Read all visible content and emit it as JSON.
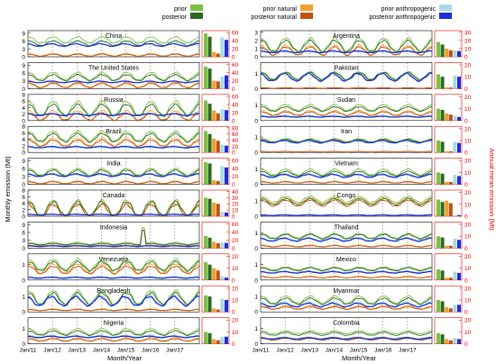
{
  "colors": {
    "prior": "#7bc142",
    "posterior": "#2d6a1f",
    "prior_natural": "#f0a030",
    "posterior_natural": "#c05010",
    "prior_anthropogenic": "#a8d8ea",
    "posterior_anthropogenic": "#1a2fd6",
    "right_axis": "#e00000"
  },
  "legend": {
    "prior": "prior",
    "posterior": "posterior",
    "prior_natural": "prior natural",
    "posterior_natural": "posterior natural",
    "prior_anthropogenic": "prior anthropogenic",
    "posterior_anthropogenic": "posterior anthropogenic"
  },
  "axes": {
    "left_ylabel": "Monthly emission (Mt)",
    "right_ylabel": "Annual mean emission (Mt)",
    "xlabel": "Month/Year",
    "xticks": [
      "Jan/11",
      "Jan/12",
      "Jan/13",
      "Jan/14",
      "Jan/15",
      "Jan/16",
      "Jan/17"
    ]
  },
  "chart_data": [
    {
      "type": "line+bar",
      "title": "China",
      "yticks": [
        0,
        3,
        6,
        9
      ],
      "ylim": [
        0,
        10
      ],
      "right_ticks": [
        0,
        20,
        40,
        60
      ],
      "right_lim": [
        0,
        65
      ],
      "monthly": {
        "prior": {
          "base": 6.5,
          "amp": 1.2
        },
        "posterior": {
          "base": 5.2,
          "amp": 0.9
        },
        "prior_natural": {
          "base": 0.8,
          "amp": 0.5
        },
        "posterior_natural": {
          "base": 0.6,
          "amp": 0.4
        },
        "prior_anthropogenic": {
          "base": 5.5,
          "amp": 0.3
        },
        "posterior_anthropogenic": {
          "base": 4.5,
          "amp": 0.5
        }
      },
      "annual_bars": [
        58,
        50,
        12,
        8,
        48,
        42
      ]
    },
    {
      "type": "line+bar",
      "title": "The United States",
      "yticks": [
        0,
        3,
        6,
        9
      ],
      "ylim": [
        0,
        10
      ],
      "right_ticks": [
        0,
        20,
        40,
        60
      ],
      "right_lim": [
        0,
        65
      ],
      "monthly": {
        "prior": {
          "base": 4.8,
          "amp": 1.5
        },
        "posterior": {
          "base": 4.2,
          "amp": 1.2
        },
        "prior_natural": {
          "base": 1.5,
          "amp": 1.0
        },
        "posterior_natural": {
          "base": 1.2,
          "amp": 0.9
        },
        "prior_anthropogenic": {
          "base": 2.5,
          "amp": 0.2
        },
        "posterior_anthropogenic": {
          "base": 2.6,
          "amp": 0.3
        }
      },
      "annual_bars": [
        55,
        50,
        20,
        18,
        30,
        33
      ]
    },
    {
      "type": "line+bar",
      "title": "Russia",
      "yticks": [
        0,
        2,
        4,
        6,
        8
      ],
      "ylim": [
        0,
        8
      ],
      "right_ticks": [
        0,
        20,
        40,
        60
      ],
      "right_lim": [
        0,
        65
      ],
      "monthly": {
        "prior": {
          "base": 3.8,
          "amp": 2.2
        },
        "posterior": {
          "base": 3.2,
          "amp": 1.8
        },
        "prior_natural": {
          "base": 1.6,
          "amp": 1.5
        },
        "posterior_natural": {
          "base": 1.2,
          "amp": 1.1
        },
        "prior_anthropogenic": {
          "base": 2.0,
          "amp": 0.2
        },
        "posterior_anthropogenic": {
          "base": 1.8,
          "amp": 0.3
        }
      },
      "annual_bars": [
        50,
        42,
        25,
        18,
        28,
        26
      ]
    },
    {
      "type": "line+bar",
      "title": "Brazil",
      "yticks": [
        0,
        2,
        4,
        6,
        8
      ],
      "ylim": [
        0,
        8
      ],
      "right_ticks": [
        0,
        20,
        40,
        60,
        80
      ],
      "right_lim": [
        0,
        85
      ],
      "monthly": {
        "prior": {
          "base": 5.0,
          "amp": 1.5
        },
        "posterior": {
          "base": 4.5,
          "amp": 1.3
        },
        "prior_natural": {
          "base": 3.2,
          "amp": 1.2
        },
        "posterior_natural": {
          "base": 2.8,
          "amp": 1.0
        },
        "prior_anthropogenic": {
          "base": 1.8,
          "amp": 0.2
        },
        "posterior_anthropogenic": {
          "base": 1.6,
          "amp": 0.2
        }
      },
      "annual_bars": [
        70,
        60,
        45,
        38,
        25,
        22
      ]
    },
    {
      "type": "line+bar",
      "title": "India",
      "yticks": [
        0,
        3,
        6,
        9
      ],
      "ylim": [
        0,
        10
      ],
      "right_ticks": [
        0,
        20,
        40,
        60
      ],
      "right_lim": [
        0,
        65
      ],
      "monthly": {
        "prior": {
          "base": 4.8,
          "amp": 1.3
        },
        "posterior": {
          "base": 4.3,
          "amp": 1.2
        },
        "prior_natural": {
          "base": 0.8,
          "amp": 0.5
        },
        "posterior_natural": {
          "base": 0.6,
          "amp": 0.4
        },
        "prior_anthropogenic": {
          "base": 3.8,
          "amp": 0.4
        },
        "posterior_anthropogenic": {
          "base": 3.5,
          "amp": 0.5
        }
      },
      "annual_bars": [
        55,
        52,
        10,
        8,
        45,
        42
      ]
    },
    {
      "type": "line+bar",
      "title": "Canada",
      "yticks": [
        0,
        2,
        4,
        6,
        8
      ],
      "ylim": [
        0,
        8
      ],
      "right_ticks": [
        0,
        10,
        20,
        30,
        40
      ],
      "right_lim": [
        0,
        42
      ],
      "monthly": {
        "prior": {
          "base": 2.5,
          "amp": 2.5
        },
        "posterior": {
          "base": 2.3,
          "amp": 2.2
        },
        "prior_natural": {
          "base": 1.8,
          "amp": 2.2
        },
        "posterior_natural": {
          "base": 1.6,
          "amp": 2.0
        },
        "prior_anthropogenic": {
          "base": 0.6,
          "amp": 0.1
        },
        "posterior_anthropogenic": {
          "base": 0.5,
          "amp": 0.1
        }
      },
      "annual_bars": [
        30,
        28,
        22,
        20,
        7,
        6
      ]
    },
    {
      "type": "line+bar",
      "title": "Indonesia",
      "yticks": [
        0,
        3,
        6,
        9
      ],
      "ylim": [
        0,
        10
      ],
      "right_ticks": [
        0,
        20,
        40,
        60
      ],
      "right_lim": [
        0,
        65
      ],
      "monthly": {
        "prior": {
          "base": 1.8,
          "amp": 0.4
        },
        "posterior": {
          "base": 1.5,
          "amp": 0.3
        },
        "prior_natural": {
          "base": 0.9,
          "amp": 0.3
        },
        "posterior_natural": {
          "base": 0.7,
          "amp": 0.2
        },
        "prior_anthropogenic": {
          "base": 0.9,
          "amp": 0.1
        },
        "posterior_anthropogenic": {
          "base": 0.8,
          "amp": 0.1
        }
      },
      "annual_bars": [
        30,
        26,
        16,
        12,
        14,
        13
      ]
    },
    {
      "type": "line+bar",
      "title": "Venezuela",
      "yticks": [
        0,
        1
      ],
      "ylim": [
        0,
        1.7
      ],
      "right_ticks": [
        0,
        10,
        20
      ],
      "right_lim": [
        0,
        22
      ],
      "monthly": {
        "prior": {
          "base": 1.0,
          "amp": 0.35
        },
        "posterior": {
          "base": 0.9,
          "amp": 0.3
        },
        "prior_natural": {
          "base": 0.75,
          "amp": 0.3
        },
        "posterior_natural": {
          "base": 0.65,
          "amp": 0.25
        },
        "prior_anthropogenic": {
          "base": 0.2,
          "amp": 0.03
        },
        "posterior_anthropogenic": {
          "base": 0.15,
          "amp": 0.03
        }
      },
      "annual_bars": [
        15,
        13,
        10,
        8,
        3,
        2
      ]
    },
    {
      "type": "line+bar",
      "title": "Bangladesh",
      "yticks": [
        0,
        1
      ],
      "ylim": [
        0,
        1.7
      ],
      "right_ticks": [
        0,
        10,
        20
      ],
      "right_lim": [
        0,
        22
      ],
      "monthly": {
        "prior": {
          "base": 0.95,
          "amp": 0.45
        },
        "posterior": {
          "base": 0.85,
          "amp": 0.4
        },
        "prior_natural": {
          "base": 0.15,
          "amp": 0.05
        },
        "posterior_natural": {
          "base": 0.12,
          "amp": 0.04
        },
        "prior_anthropogenic": {
          "base": 0.75,
          "amp": 0.35
        },
        "posterior_anthropogenic": {
          "base": 0.7,
          "amp": 0.3
        }
      },
      "annual_bars": [
        14,
        13,
        3,
        2,
        11,
        10
      ]
    },
    {
      "type": "line+bar",
      "title": "Nigeria",
      "yticks": [
        0,
        1
      ],
      "ylim": [
        0,
        1.7
      ],
      "right_ticks": [
        0,
        10,
        20
      ],
      "right_lim": [
        0,
        22
      ],
      "monthly": {
        "prior": {
          "base": 0.8,
          "amp": 0.2
        },
        "posterior": {
          "base": 0.7,
          "amp": 0.15
        },
        "prior_natural": {
          "base": 0.3,
          "amp": 0.1
        },
        "posterior_natural": {
          "base": 0.25,
          "amp": 0.08
        },
        "prior_anthropogenic": {
          "base": 0.5,
          "amp": 0.05
        },
        "posterior_anthropogenic": {
          "base": 0.45,
          "amp": 0.05
        }
      },
      "annual_bars": [
        10,
        9,
        4,
        3,
        6,
        6
      ]
    },
    {
      "type": "line+bar",
      "title": "Argentina",
      "yticks": [
        0,
        1,
        2,
        3
      ],
      "ylim": [
        0,
        3.2
      ],
      "right_ticks": [
        0,
        10,
        20,
        30
      ],
      "right_lim": [
        0,
        32
      ],
      "monthly": {
        "prior": {
          "base": 1.5,
          "amp": 0.8
        },
        "posterior": {
          "base": 1.3,
          "amp": 0.7
        },
        "prior_natural": {
          "base": 0.8,
          "amp": 0.6
        },
        "posterior_natural": {
          "base": 0.7,
          "amp": 0.5
        },
        "prior_anthropogenic": {
          "base": 0.7,
          "amp": 0.1
        },
        "posterior_anthropogenic": {
          "base": 0.6,
          "amp": 0.1
        }
      },
      "annual_bars": [
        18,
        15,
        10,
        8,
        8,
        7
      ]
    },
    {
      "type": "line+bar",
      "title": "Pakistan",
      "yticks": [
        0,
        1
      ],
      "ylim": [
        0,
        1.7
      ],
      "right_ticks": [
        0,
        10,
        20
      ],
      "right_lim": [
        0,
        22
      ],
      "monthly": {
        "prior": {
          "base": 0.85,
          "amp": 0.25
        },
        "posterior": {
          "base": 0.8,
          "amp": 0.25
        },
        "prior_natural": {
          "base": 0.05,
          "amp": 0.02
        },
        "posterior_natural": {
          "base": 0.04,
          "amp": 0.02
        },
        "prior_anthropogenic": {
          "base": 0.8,
          "amp": 0.25
        },
        "posterior_anthropogenic": {
          "base": 0.75,
          "amp": 0.25
        }
      },
      "annual_bars": [
        12,
        10,
        1,
        1,
        11,
        10
      ]
    },
    {
      "type": "line+bar",
      "title": "Sudan",
      "yticks": [
        0,
        1
      ],
      "ylim": [
        0,
        1.7
      ],
      "right_ticks": [
        0,
        10,
        20
      ],
      "right_lim": [
        0,
        22
      ],
      "monthly": {
        "prior": {
          "base": 0.85,
          "amp": 0.2
        },
        "posterior": {
          "base": 0.75,
          "amp": 0.15
        },
        "prior_natural": {
          "base": 0.5,
          "amp": 0.15
        },
        "posterior_natural": {
          "base": 0.45,
          "amp": 0.12
        },
        "prior_anthropogenic": {
          "base": 0.3,
          "amp": 0.03
        },
        "posterior_anthropogenic": {
          "base": 0.25,
          "amp": 0.03
        }
      },
      "annual_bars": [
        10,
        9,
        6,
        5,
        4,
        3
      ]
    },
    {
      "type": "line+bar",
      "title": "Iran",
      "yticks": [
        0,
        1
      ],
      "ylim": [
        0,
        1.7
      ],
      "right_ticks": [
        0,
        10,
        20
      ],
      "right_lim": [
        0,
        22
      ],
      "monthly": {
        "prior": {
          "base": 0.8,
          "amp": 0.1
        },
        "posterior": {
          "base": 0.75,
          "amp": 0.1
        },
        "prior_natural": {
          "base": 0.05,
          "amp": 0.02
        },
        "posterior_natural": {
          "base": 0.05,
          "amp": 0.02
        },
        "prior_anthropogenic": {
          "base": 0.75,
          "amp": 0.08
        },
        "posterior_anthropogenic": {
          "base": 0.7,
          "amp": 0.08
        }
      },
      "annual_bars": [
        10,
        9,
        1,
        1,
        9,
        8
      ]
    },
    {
      "type": "line+bar",
      "title": "Vietnam",
      "yticks": [
        0,
        1
      ],
      "ylim": [
        0,
        1.7
      ],
      "right_ticks": [
        0,
        10,
        20
      ],
      "right_lim": [
        0,
        22
      ],
      "monthly": {
        "prior": {
          "base": 0.8,
          "amp": 0.2
        },
        "posterior": {
          "base": 0.7,
          "amp": 0.15
        },
        "prior_natural": {
          "base": 0.15,
          "amp": 0.05
        },
        "posterior_natural": {
          "base": 0.12,
          "amp": 0.04
        },
        "prior_anthropogenic": {
          "base": 0.6,
          "amp": 0.1
        },
        "posterior_anthropogenic": {
          "base": 0.55,
          "amp": 0.1
        }
      },
      "annual_bars": [
        10,
        9,
        2,
        2,
        8,
        7
      ]
    },
    {
      "type": "line+bar",
      "title": "Congo",
      "yticks": [
        0,
        1
      ],
      "ylim": [
        0,
        1.7
      ],
      "right_ticks": [
        0,
        10,
        20
      ],
      "right_lim": [
        0,
        22
      ],
      "monthly": {
        "prior": {
          "base": 1.1,
          "amp": 0.2
        },
        "posterior": {
          "base": 0.95,
          "amp": 0.2
        },
        "prior_natural": {
          "base": 1.0,
          "amp": 0.2
        },
        "posterior_natural": {
          "base": 0.85,
          "amp": 0.2
        },
        "prior_anthropogenic": {
          "base": 0.08,
          "amp": 0.02
        },
        "posterior_anthropogenic": {
          "base": 0.07,
          "amp": 0.02
        }
      },
      "annual_bars": [
        14,
        12,
        13,
        11,
        1,
        1
      ]
    },
    {
      "type": "line+bar",
      "title": "Thailand",
      "yticks": [
        0,
        1
      ],
      "ylim": [
        0,
        1.7
      ],
      "right_ticks": [
        0,
        10,
        20
      ],
      "right_lim": [
        0,
        22
      ],
      "monthly": {
        "prior": {
          "base": 0.8,
          "amp": 0.15
        },
        "posterior": {
          "base": 0.75,
          "amp": 0.15
        },
        "prior_natural": {
          "base": 0.15,
          "amp": 0.05
        },
        "posterior_natural": {
          "base": 0.12,
          "amp": 0.04
        },
        "prior_anthropogenic": {
          "base": 0.6,
          "amp": 0.1
        },
        "posterior_anthropogenic": {
          "base": 0.55,
          "amp": 0.1
        }
      },
      "annual_bars": [
        10,
        9,
        2,
        2,
        8,
        7
      ]
    },
    {
      "type": "line+bar",
      "title": "Mexico",
      "yticks": [
        0,
        1
      ],
      "ylim": [
        0,
        1.7
      ],
      "right_ticks": [
        0,
        10,
        20
      ],
      "right_lim": [
        0,
        22
      ],
      "monthly": {
        "prior": {
          "base": 0.75,
          "amp": 0.1
        },
        "posterior": {
          "base": 0.7,
          "amp": 0.1
        },
        "prior_natural": {
          "base": 0.2,
          "amp": 0.05
        },
        "posterior_natural": {
          "base": 0.18,
          "amp": 0.04
        },
        "prior_anthropogenic": {
          "base": 0.55,
          "amp": 0.05
        },
        "posterior_anthropogenic": {
          "base": 0.5,
          "amp": 0.05
        }
      },
      "annual_bars": [
        9,
        8,
        2,
        2,
        7,
        6
      ]
    },
    {
      "type": "line+bar",
      "title": "Myanmar",
      "yticks": [
        0,
        1
      ],
      "ylim": [
        0,
        1.7
      ],
      "right_ticks": [
        0,
        10,
        20
      ],
      "right_lim": [
        0,
        22
      ],
      "monthly": {
        "prior": {
          "base": 0.8,
          "amp": 0.25
        },
        "posterior": {
          "base": 0.7,
          "amp": 0.2
        },
        "prior_natural": {
          "base": 0.3,
          "amp": 0.1
        },
        "posterior_natural": {
          "base": 0.25,
          "amp": 0.08
        },
        "prior_anthropogenic": {
          "base": 0.5,
          "amp": 0.15
        },
        "posterior_anthropogenic": {
          "base": 0.45,
          "amp": 0.12
        }
      },
      "annual_bars": [
        10,
        9,
        4,
        3,
        6,
        6
      ]
    },
    {
      "type": "line+bar",
      "title": "Colombia",
      "yticks": [
        0,
        1
      ],
      "ylim": [
        0,
        1.7
      ],
      "right_ticks": [
        0,
        10,
        20
      ],
      "right_lim": [
        0,
        22
      ],
      "monthly": {
        "prior": {
          "base": 0.75,
          "amp": 0.1
        },
        "posterior": {
          "base": 0.65,
          "amp": 0.1
        },
        "prior_natural": {
          "base": 0.35,
          "amp": 0.08
        },
        "posterior_natural": {
          "base": 0.3,
          "amp": 0.06
        },
        "prior_anthropogenic": {
          "base": 0.4,
          "amp": 0.05
        },
        "posterior_anthropogenic": {
          "base": 0.35,
          "amp": 0.05
        }
      },
      "annual_bars": [
        9,
        8,
        4,
        3,
        5,
        4
      ]
    }
  ]
}
